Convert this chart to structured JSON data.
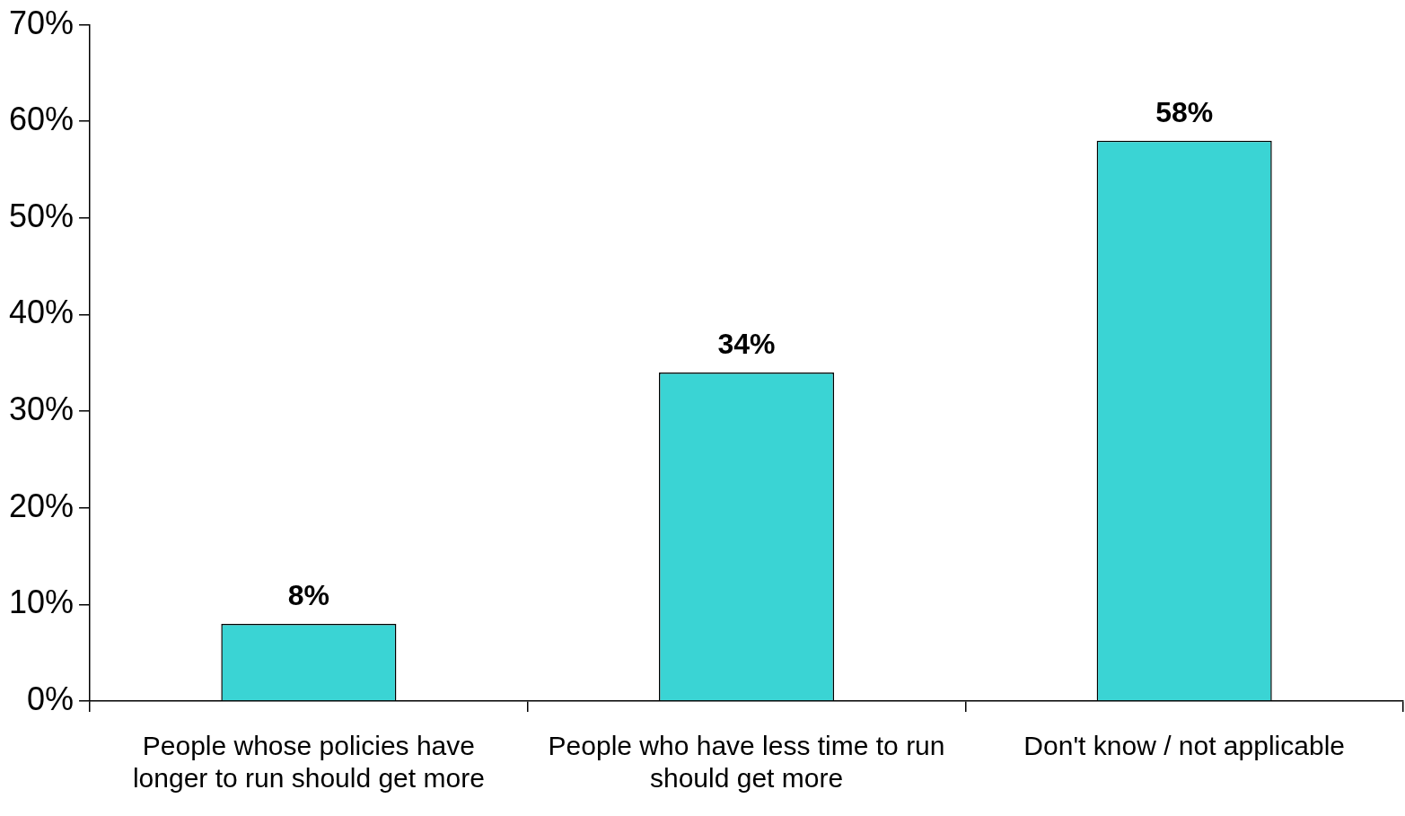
{
  "chart_data": {
    "type": "bar",
    "categories": [
      "People whose policies have longer to run should get more",
      "People who have less time to run should get more",
      "Don't know / not applicable"
    ],
    "values": [
      8,
      34,
      58
    ],
    "color": "#3ad4d4",
    "value_labels": [
      "8%",
      "34%",
      "58%"
    ],
    "ylim": [
      0,
      70
    ],
    "yticks": [
      {
        "value": 0,
        "label": "0%"
      },
      {
        "value": 10,
        "label": "10%"
      },
      {
        "value": 20,
        "label": "20%"
      },
      {
        "value": 30,
        "label": "30%"
      },
      {
        "value": 40,
        "label": "40%"
      },
      {
        "value": 50,
        "label": "50%"
      },
      {
        "value": 60,
        "label": "60%"
      },
      {
        "value": 70,
        "label": "70%"
      }
    ],
    "grid": false,
    "legend": false
  }
}
